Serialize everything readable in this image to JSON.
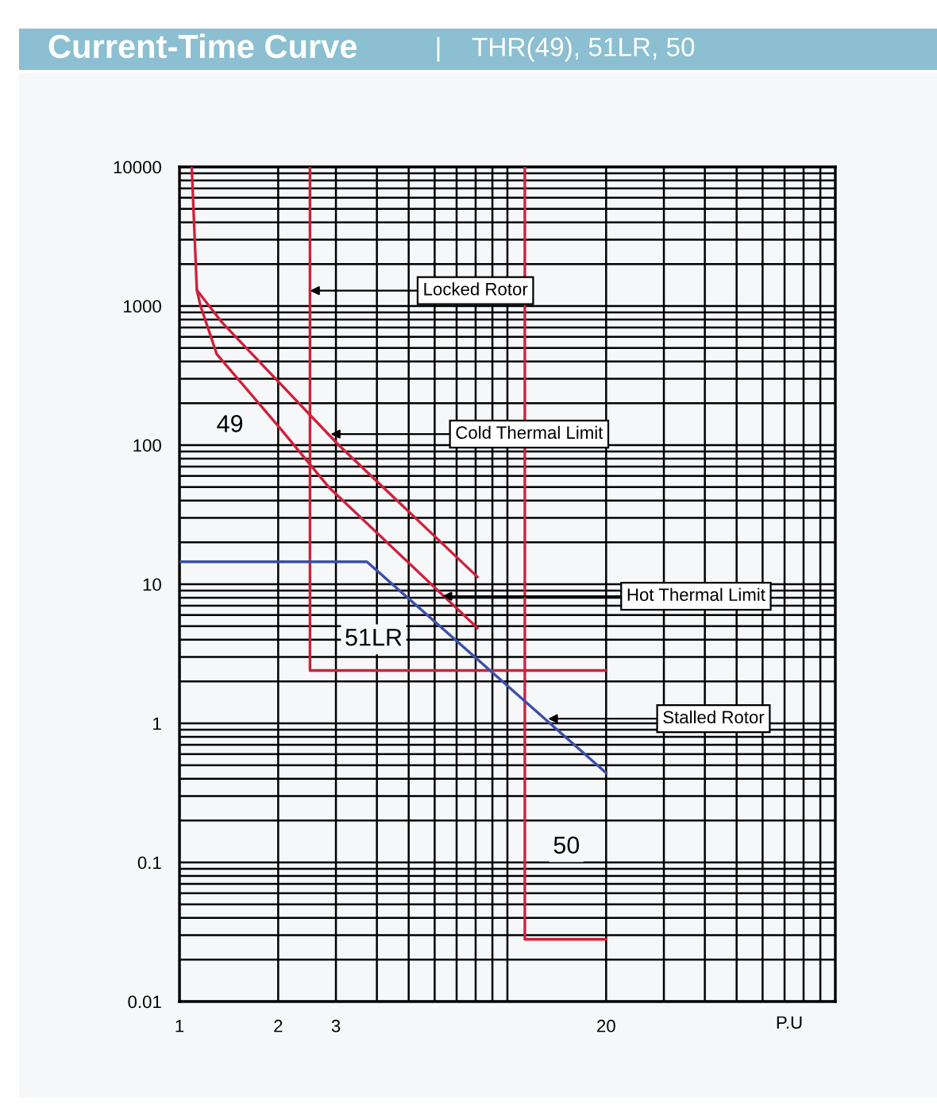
{
  "chart_data": {
    "type": "line",
    "title": "Current-Time Curve",
    "subtitle": "THR(49), 51LR, 50",
    "xlabel": "P.U",
    "log": "xy",
    "grid": true,
    "marker": "none",
    "line_style": "solid",
    "xlim": [
      1,
      100
    ],
    "xticks": [
      1,
      2,
      3,
      20
    ],
    "ylim": [
      0.01,
      10000
    ],
    "yticks": [
      {
        "value": 0.01,
        "label": "0.01"
      },
      {
        "value": 0.1,
        "label": "0.1"
      },
      1,
      10,
      100,
      1000,
      10000
    ],
    "series": [
      {
        "color": "#d0203a",
        "x": [
          1.09,
          1.13,
          1.35,
          3.06,
          8.1
        ],
        "values": [
          10000,
          1300,
          760,
          100,
          11.3
        ]
      },
      {
        "color": "#d0203a",
        "x": [
          1.13,
          1.16,
          1.3,
          2.04,
          2.85,
          8.1
        ],
        "values": [
          1300,
          1000,
          450,
          130,
          50,
          4.85
        ]
      },
      {
        "color": "#d0203a",
        "x": [
          2.5,
          2.5,
          20
        ],
        "values": [
          10000,
          2.4,
          2.4
        ]
      },
      {
        "color": "#d0203a",
        "x": [
          11.3,
          11.3,
          20
        ],
        "values": [
          10000,
          0.028,
          0.028
        ]
      },
      {
        "color": "#3a4fa8",
        "x": [
          1,
          3.73,
          20
        ],
        "values": [
          14.5,
          14.5,
          0.44
        ]
      }
    ],
    "annotations": [
      {
        "text": "Locked Rotor",
        "x": 2.5,
        "y": 1290
      },
      {
        "text": "Cold Thermal Limit",
        "x": 2.89,
        "y": 120
      },
      {
        "text": "Hot Thermal Limit",
        "x": 6.33,
        "y": 8.2
      },
      {
        "text": "Stalled Rotor",
        "x": 13.3,
        "y": 1.08
      },
      "49",
      "51LR",
      "50"
    ]
  }
}
